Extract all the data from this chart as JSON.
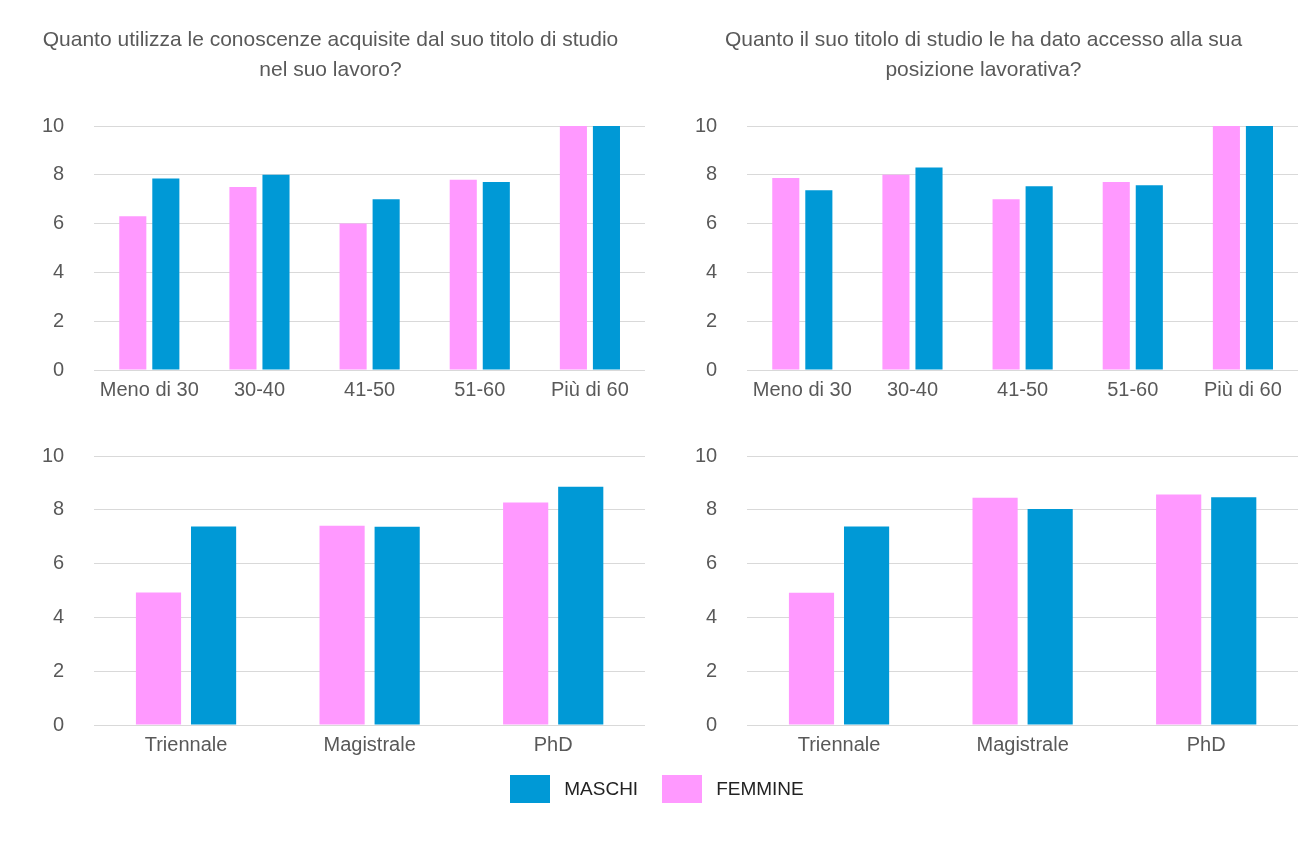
{
  "chart_data": [
    {
      "type": "bar",
      "title": "Quanto utilizza le conoscenze acquisite dal suo titolo di studio nel suo lavoro?",
      "categories": [
        "Meno di 30",
        "30-40",
        "41-50",
        "51-60",
        "Più di 60"
      ],
      "series": [
        {
          "name": "FEMMINE",
          "color": "#ff99ff",
          "values": [
            6.3,
            7.5,
            6.0,
            7.8,
            10
          ]
        },
        {
          "name": "MASCHI",
          "color": "#0099d6",
          "values": [
            7.85,
            8.0,
            7.0,
            7.7,
            10
          ]
        }
      ],
      "ylim": [
        0,
        10
      ],
      "yticks": [
        0,
        2,
        4,
        6,
        8,
        10
      ],
      "grid": "y",
      "legend": "bottom"
    },
    {
      "type": "bar",
      "title": "Quanto il suo titolo di studio le ha dato accesso alla sua posizione lavorativa?",
      "categories": [
        "Meno di 30",
        "30-40",
        "41-50",
        "51-60",
        "Più di 60"
      ],
      "series": [
        {
          "color": "#ff99ff",
          "values": [
            7.87,
            8.0,
            7.0,
            7.7,
            10
          ]
        },
        {
          "color": "#0099d6",
          "values": [
            7.37,
            8.3,
            7.53,
            7.57,
            10
          ]
        }
      ],
      "ylim": [
        0,
        10
      ],
      "yticks": [
        0,
        2,
        4,
        6,
        8,
        10
      ],
      "grid": "y"
    },
    {
      "type": "bar",
      "categories": [
        "Triennale",
        "Magistrale",
        "PhD"
      ],
      "series": [
        {
          "color": "#ff99ff",
          "values": [
            4.93,
            7.41,
            8.27
          ]
        },
        {
          "color": "#0099d6",
          "values": [
            7.38,
            7.37,
            8.86
          ]
        }
      ],
      "ylim": [
        0,
        10
      ],
      "yticks": [
        0,
        2,
        4,
        6,
        8,
        10
      ],
      "grid": "y"
    },
    {
      "type": "bar",
      "categories": [
        "Triennale",
        "Magistrale",
        "PhD"
      ],
      "series": [
        {
          "color": "#ff99ff",
          "values": [
            4.92,
            8.45,
            8.57
          ]
        },
        {
          "color": "#0099d6",
          "values": [
            7.38,
            8.03,
            8.47
          ]
        }
      ],
      "ylim": [
        0,
        10
      ],
      "yticks": [
        0,
        2,
        4,
        6,
        8,
        10
      ],
      "grid": "y"
    }
  ]
}
